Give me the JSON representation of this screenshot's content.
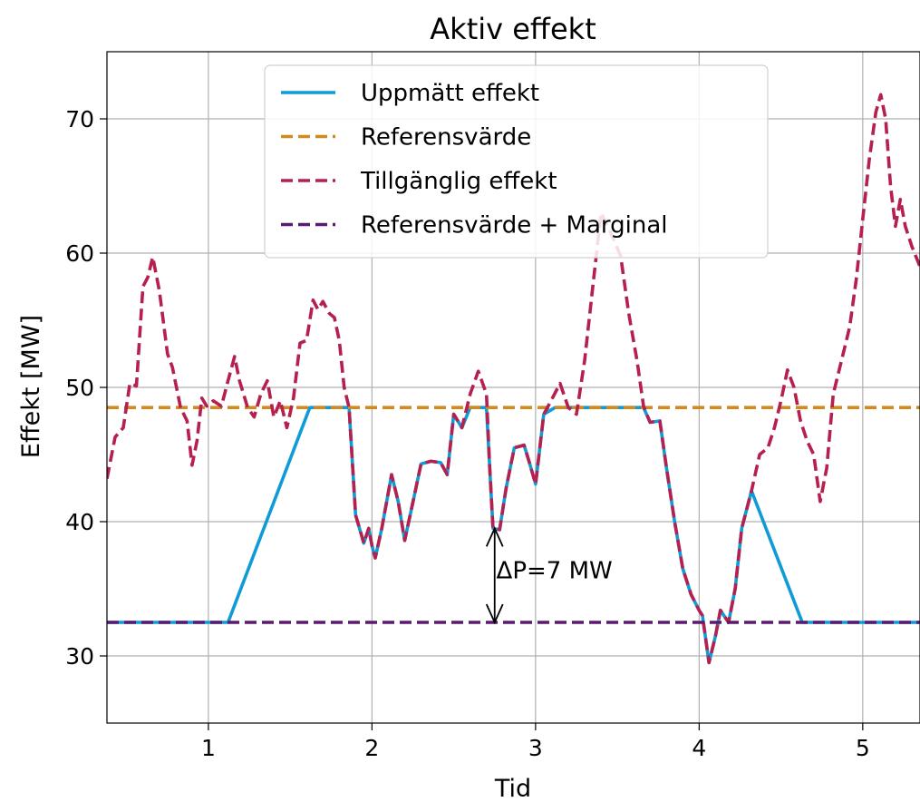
{
  "chart_data": {
    "type": "line",
    "title": "Aktiv effekt",
    "xlabel": "Tid",
    "ylabel": "Effekt [MW]",
    "xlim": [
      0.38,
      5.35
    ],
    "ylim": [
      25,
      75
    ],
    "xticks": [
      1,
      2,
      3,
      4,
      5
    ],
    "yticks": [
      30,
      40,
      50,
      60,
      70
    ],
    "grid": true,
    "legend_position": "upper center",
    "series": [
      {
        "name": "Uppmätt effekt",
        "color": "#0f9bd7",
        "style": "solid",
        "points": [
          [
            0.38,
            32.5
          ],
          [
            1.12,
            32.5
          ],
          [
            1.62,
            48.5
          ],
          [
            1.86,
            48.5
          ],
          [
            1.9,
            40.5
          ],
          [
            1.95,
            38.4
          ],
          [
            1.98,
            39.5
          ],
          [
            2.0,
            38.2
          ],
          [
            2.02,
            37.3
          ],
          [
            2.06,
            39.5
          ],
          [
            2.12,
            43.5
          ],
          [
            2.16,
            41.5
          ],
          [
            2.2,
            38.6
          ],
          [
            2.26,
            42.0
          ],
          [
            2.3,
            44.3
          ],
          [
            2.36,
            44.5
          ],
          [
            2.42,
            44.4
          ],
          [
            2.46,
            43.5
          ],
          [
            2.5,
            48.0
          ],
          [
            2.55,
            47.0
          ],
          [
            2.6,
            48.5
          ],
          [
            2.7,
            48.5
          ],
          [
            2.72,
            44.0
          ],
          [
            2.74,
            39.5
          ],
          [
            2.78,
            39.4
          ],
          [
            2.82,
            42.5
          ],
          [
            2.87,
            45.5
          ],
          [
            2.93,
            45.7
          ],
          [
            2.96,
            44.5
          ],
          [
            3.0,
            42.8
          ],
          [
            3.05,
            48.0
          ],
          [
            3.12,
            48.5
          ],
          [
            3.66,
            48.5
          ],
          [
            3.7,
            47.4
          ],
          [
            3.76,
            47.5
          ],
          [
            3.8,
            44.0
          ],
          [
            3.85,
            40.0
          ],
          [
            3.9,
            36.5
          ],
          [
            3.95,
            34.6
          ],
          [
            4.0,
            33.4
          ],
          [
            4.02,
            33.0
          ],
          [
            4.06,
            29.5
          ],
          [
            4.1,
            31.5
          ],
          [
            4.13,
            33.4
          ],
          [
            4.18,
            32.5
          ],
          [
            4.22,
            35.0
          ],
          [
            4.26,
            39.5
          ],
          [
            4.32,
            42.3
          ],
          [
            4.63,
            32.5
          ],
          [
            5.35,
            32.5
          ]
        ]
      },
      {
        "name": "Referensvärde",
        "color": "#d28a1e",
        "style": "dashed",
        "points": [
          [
            0.38,
            48.5
          ],
          [
            5.35,
            48.5
          ]
        ]
      },
      {
        "name": "Tillgänglig effekt",
        "color": "#b5204f",
        "style": "dashed",
        "points": [
          [
            0.38,
            43.2
          ],
          [
            0.43,
            46.3
          ],
          [
            0.48,
            47.0
          ],
          [
            0.52,
            50.3
          ],
          [
            0.56,
            50.1
          ],
          [
            0.6,
            57.5
          ],
          [
            0.63,
            58.2
          ],
          [
            0.66,
            59.7
          ],
          [
            0.7,
            57.2
          ],
          [
            0.75,
            52.5
          ],
          [
            0.78,
            51.5
          ],
          [
            0.83,
            48.5
          ],
          [
            0.87,
            47.5
          ],
          [
            0.9,
            44.2
          ],
          [
            0.93,
            46.0
          ],
          [
            0.96,
            49.2
          ],
          [
            0.99,
            48.6
          ],
          [
            1.03,
            49.0
          ],
          [
            1.08,
            48.6
          ],
          [
            1.12,
            50.5
          ],
          [
            1.16,
            52.3
          ],
          [
            1.19,
            50.5
          ],
          [
            1.24,
            48.5
          ],
          [
            1.28,
            47.8
          ],
          [
            1.32,
            49.5
          ],
          [
            1.36,
            50.5
          ],
          [
            1.4,
            47.8
          ],
          [
            1.44,
            49.0
          ],
          [
            1.48,
            47.0
          ],
          [
            1.52,
            49.2
          ],
          [
            1.56,
            53.3
          ],
          [
            1.6,
            53.5
          ],
          [
            1.64,
            56.5
          ],
          [
            1.67,
            55.8
          ],
          [
            1.7,
            56.4
          ],
          [
            1.74,
            55.5
          ],
          [
            1.77,
            55.2
          ],
          [
            1.8,
            53.5
          ],
          [
            1.83,
            50.0
          ],
          [
            1.86,
            48.5
          ],
          [
            1.9,
            40.5
          ],
          [
            1.95,
            38.4
          ],
          [
            1.98,
            39.5
          ],
          [
            2.0,
            38.2
          ],
          [
            2.02,
            37.3
          ],
          [
            2.06,
            39.5
          ],
          [
            2.12,
            43.5
          ],
          [
            2.16,
            41.5
          ],
          [
            2.2,
            38.6
          ],
          [
            2.26,
            42.0
          ],
          [
            2.3,
            44.3
          ],
          [
            2.36,
            44.5
          ],
          [
            2.42,
            44.4
          ],
          [
            2.46,
            43.5
          ],
          [
            2.5,
            48.0
          ],
          [
            2.55,
            47.0
          ],
          [
            2.6,
            49.5
          ],
          [
            2.65,
            51.2
          ],
          [
            2.7,
            49.5
          ],
          [
            2.72,
            44.0
          ],
          [
            2.74,
            39.5
          ],
          [
            2.78,
            39.4
          ],
          [
            2.82,
            42.5
          ],
          [
            2.87,
            45.5
          ],
          [
            2.93,
            45.7
          ],
          [
            2.96,
            44.5
          ],
          [
            3.0,
            42.8
          ],
          [
            3.05,
            48.0
          ],
          [
            3.09,
            48.9
          ],
          [
            3.15,
            50.3
          ],
          [
            3.2,
            48.5
          ],
          [
            3.25,
            48.0
          ],
          [
            3.3,
            52.0
          ],
          [
            3.35,
            57.5
          ],
          [
            3.4,
            63.0
          ],
          [
            3.46,
            61.5
          ],
          [
            3.52,
            59.8
          ],
          [
            3.57,
            55.5
          ],
          [
            3.62,
            52.0
          ],
          [
            3.66,
            48.6
          ],
          [
            3.7,
            47.4
          ],
          [
            3.76,
            47.5
          ],
          [
            3.8,
            44.0
          ],
          [
            3.85,
            40.0
          ],
          [
            3.9,
            36.5
          ],
          [
            3.95,
            34.6
          ],
          [
            4.0,
            33.4
          ],
          [
            4.02,
            33.0
          ],
          [
            4.06,
            29.5
          ],
          [
            4.1,
            31.5
          ],
          [
            4.13,
            33.4
          ],
          [
            4.18,
            32.5
          ],
          [
            4.22,
            35.0
          ],
          [
            4.26,
            39.5
          ],
          [
            4.32,
            42.3
          ],
          [
            4.37,
            45.0
          ],
          [
            4.42,
            45.5
          ],
          [
            4.46,
            47.0
          ],
          [
            4.5,
            49.0
          ],
          [
            4.54,
            51.3
          ],
          [
            4.58,
            50.0
          ],
          [
            4.62,
            47.5
          ],
          [
            4.66,
            46.0
          ],
          [
            4.7,
            45.0
          ],
          [
            4.74,
            41.5
          ],
          [
            4.78,
            44.0
          ],
          [
            4.82,
            49.5
          ],
          [
            4.87,
            52.0
          ],
          [
            4.92,
            54.5
          ],
          [
            4.96,
            58.0
          ],
          [
            5.0,
            62.5
          ],
          [
            5.04,
            67.0
          ],
          [
            5.08,
            70.5
          ],
          [
            5.11,
            71.8
          ],
          [
            5.14,
            70.0
          ],
          [
            5.17,
            65.0
          ],
          [
            5.2,
            62.0
          ],
          [
            5.23,
            64.0
          ],
          [
            5.26,
            62.0
          ],
          [
            5.3,
            60.5
          ],
          [
            5.35,
            59.0
          ]
        ]
      },
      {
        "name": "Referensvärde + Marginal",
        "color": "#5c1a6e",
        "style": "dashed",
        "points": [
          [
            0.38,
            32.5
          ],
          [
            5.35,
            32.5
          ]
        ]
      }
    ],
    "annotations": [
      {
        "text": "ΔP=7 MW",
        "x": 2.76,
        "y": 36.4,
        "arrow_from": [
          2.75,
          39.5
        ],
        "arrow_to": [
          2.75,
          32.5
        ],
        "arrow_style": "double"
      }
    ]
  }
}
